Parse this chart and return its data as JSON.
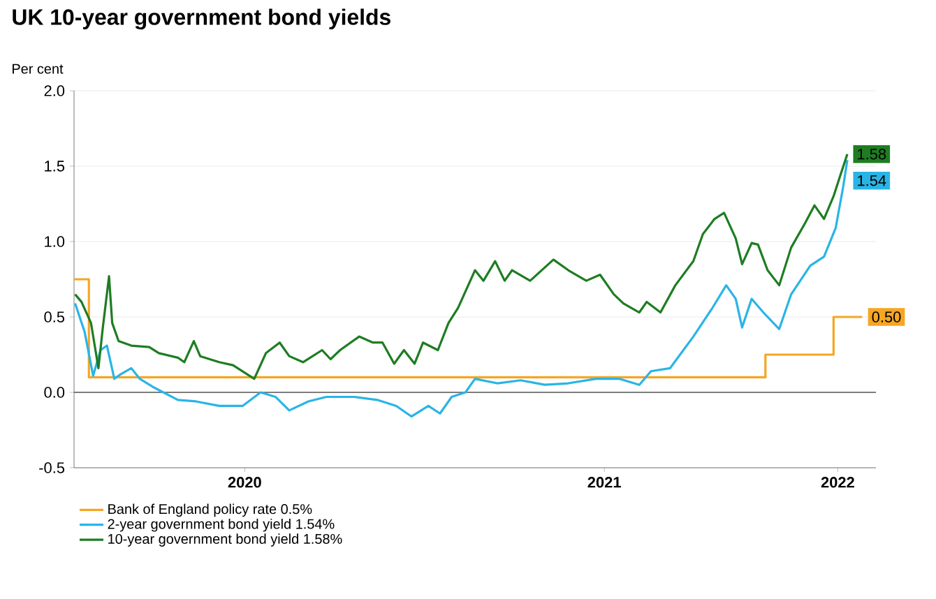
{
  "chart_data": {
    "type": "line",
    "title": "UK 10-year government bond yields",
    "ylabel": "Per cent",
    "xlim": [
      "2020-03-01",
      "2022-03-28"
    ],
    "ylim": [
      -0.5,
      2.0
    ],
    "xticks": [
      {
        "value": "2020-08-09",
        "label": "2020"
      },
      {
        "value": "2021-07-15",
        "label": "2021"
      },
      {
        "value": "2022-02-20",
        "label": "2022"
      }
    ],
    "yticks": [
      {
        "value": -0.5,
        "label": "-0.5"
      },
      {
        "value": 0,
        "label": "0.0"
      },
      {
        "value": 0.5,
        "label": "0.5"
      },
      {
        "value": 1.0,
        "label": "1.0"
      },
      {
        "value": 1.5,
        "label": "1.5"
      },
      {
        "value": 2.0,
        "label": "2.0"
      }
    ],
    "grid": "y",
    "legend": "bottom",
    "ref_lines": [
      {
        "axis": "y",
        "value": 0,
        "color": "#555555"
      }
    ],
    "series": [
      {
        "name": "Bank of England policy rate 0.5%",
        "type": "step",
        "color": "#f5a623",
        "x": [
          "2020-03-01",
          "2020-03-15",
          "2021-12-14",
          "2022-02-16",
          "2022-03-15"
        ],
        "values": [
          0.75,
          0.1,
          0.25,
          0.5,
          0.5
        ],
        "value_labels": [
          null,
          null,
          null,
          null,
          "0.50"
        ]
      },
      {
        "name": "2-year government bond yield 1.54%",
        "color": "#2ab4e6",
        "x": [
          "2020-03-02",
          "2020-03-11",
          "2020-03-19",
          "2020-03-26",
          "2020-04-01",
          "2020-04-08",
          "2020-04-14",
          "2020-04-24",
          "2020-05-02",
          "2020-05-16",
          "2020-06-07",
          "2020-06-24",
          "2020-07-16",
          "2020-08-07",
          "2020-08-24",
          "2020-09-07",
          "2020-09-20",
          "2020-10-08",
          "2020-10-25",
          "2020-11-20",
          "2020-12-12",
          "2020-12-30",
          "2021-01-14",
          "2021-01-30",
          "2021-02-10",
          "2021-02-21",
          "2021-03-06",
          "2021-03-15",
          "2021-04-05",
          "2021-04-27",
          "2021-05-20",
          "2021-06-11",
          "2021-07-07",
          "2021-07-29",
          "2021-08-17",
          "2021-08-28",
          "2021-09-15",
          "2021-10-07",
          "2021-10-25",
          "2021-11-07",
          "2021-11-16",
          "2021-11-22",
          "2021-12-01",
          "2021-12-12",
          "2021-12-27",
          "2022-01-07",
          "2022-01-25",
          "2022-02-07",
          "2022-02-18",
          "2022-02-25",
          "2022-03-01"
        ],
        "values": [
          0.59,
          0.4,
          0.11,
          0.28,
          0.31,
          0.09,
          0.12,
          0.16,
          0.09,
          0.03,
          -0.05,
          -0.06,
          -0.09,
          -0.09,
          0.0,
          -0.03,
          -0.12,
          -0.06,
          -0.03,
          -0.03,
          -0.05,
          -0.09,
          -0.16,
          -0.09,
          -0.14,
          -0.03,
          0.0,
          0.09,
          0.06,
          0.08,
          0.05,
          0.06,
          0.09,
          0.09,
          0.05,
          0.14,
          0.16,
          0.37,
          0.56,
          0.71,
          0.62,
          0.43,
          0.62,
          0.53,
          0.42,
          0.65,
          0.84,
          0.9,
          1.09,
          1.36,
          1.54
        ],
        "value_labels": [
          null,
          null,
          null,
          null,
          null,
          null,
          null,
          null,
          null,
          null,
          null,
          null,
          null,
          null,
          null,
          null,
          null,
          null,
          null,
          null,
          null,
          null,
          null,
          null,
          null,
          null,
          null,
          null,
          null,
          null,
          null,
          null,
          null,
          null,
          null,
          null,
          null,
          null,
          null,
          null,
          null,
          null,
          null,
          null,
          null,
          null,
          null,
          null,
          null,
          null,
          "1.54"
        ]
      },
      {
        "name": "10-year government bond yield 1.58%",
        "color": "#1e7d22",
        "x": [
          "2020-03-02",
          "2020-03-08",
          "2020-03-17",
          "2020-03-24",
          "2020-03-28",
          "2020-04-03",
          "2020-04-06",
          "2020-04-12",
          "2020-04-24",
          "2020-05-11",
          "2020-05-20",
          "2020-06-07",
          "2020-06-13",
          "2020-06-22",
          "2020-06-28",
          "2020-07-16",
          "2020-07-29",
          "2020-08-18",
          "2020-08-29",
          "2020-09-11",
          "2020-09-20",
          "2020-10-03",
          "2020-10-21",
          "2020-10-29",
          "2020-11-07",
          "2020-11-25",
          "2020-12-08",
          "2020-12-17",
          "2020-12-28",
          "2021-01-07",
          "2021-01-17",
          "2021-01-25",
          "2021-02-08",
          "2021-02-18",
          "2021-02-27",
          "2021-03-15",
          "2021-03-23",
          "2021-04-03",
          "2021-04-12",
          "2021-04-19",
          "2021-05-06",
          "2021-05-28",
          "2021-06-11",
          "2021-06-28",
          "2021-07-11",
          "2021-07-24",
          "2021-08-02",
          "2021-08-17",
          "2021-08-24",
          "2021-09-06",
          "2021-09-20",
          "2021-10-07",
          "2021-10-16",
          "2021-10-27",
          "2021-11-05",
          "2021-11-16",
          "2021-11-22",
          "2021-12-01",
          "2021-12-07",
          "2021-12-16",
          "2021-12-27",
          "2022-01-07",
          "2022-01-20",
          "2022-01-29",
          "2022-02-07",
          "2022-02-16",
          "2022-02-22",
          "2022-03-01"
        ],
        "values": [
          0.65,
          0.6,
          0.46,
          0.16,
          0.42,
          0.77,
          0.46,
          0.34,
          0.31,
          0.3,
          0.26,
          0.23,
          0.2,
          0.34,
          0.24,
          0.2,
          0.18,
          0.09,
          0.26,
          0.33,
          0.24,
          0.2,
          0.28,
          0.22,
          0.28,
          0.37,
          0.33,
          0.33,
          0.19,
          0.28,
          0.19,
          0.33,
          0.28,
          0.46,
          0.56,
          0.81,
          0.74,
          0.87,
          0.74,
          0.81,
          0.74,
          0.88,
          0.81,
          0.74,
          0.78,
          0.65,
          0.59,
          0.53,
          0.6,
          0.53,
          0.71,
          0.87,
          1.05,
          1.15,
          1.19,
          1.02,
          0.85,
          0.99,
          0.98,
          0.81,
          0.71,
          0.96,
          1.12,
          1.24,
          1.15,
          1.3,
          1.43,
          1.58
        ],
        "value_labels": [
          null,
          null,
          null,
          null,
          null,
          null,
          null,
          null,
          null,
          null,
          null,
          null,
          null,
          null,
          null,
          null,
          null,
          null,
          null,
          null,
          null,
          null,
          null,
          null,
          null,
          null,
          null,
          null,
          null,
          null,
          null,
          null,
          null,
          null,
          null,
          null,
          null,
          null,
          null,
          null,
          null,
          null,
          null,
          null,
          null,
          null,
          null,
          null,
          null,
          null,
          null,
          null,
          null,
          null,
          null,
          null,
          null,
          null,
          null,
          null,
          null,
          null,
          null,
          null,
          null,
          null,
          null,
          "1.58"
        ]
      }
    ]
  }
}
